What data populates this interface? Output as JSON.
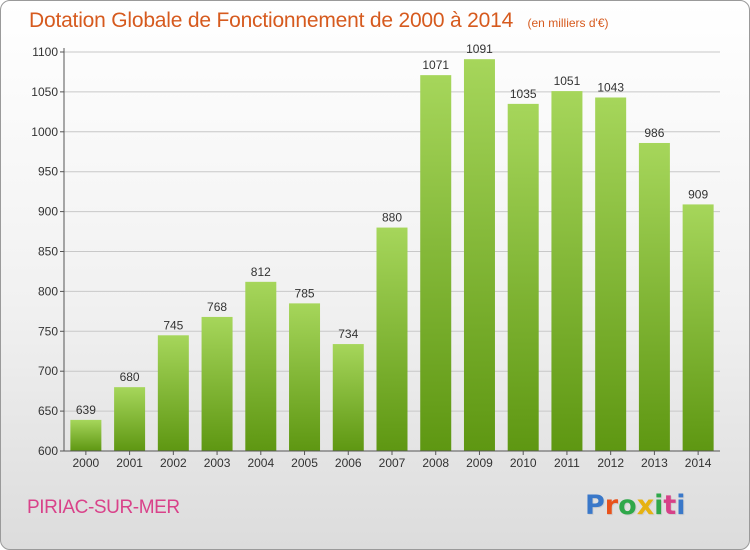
{
  "header": {
    "title": "Dotation Globale de Fonctionnement de 2000 à 2014",
    "subtitle": "(en milliers d'€)"
  },
  "footer": {
    "location": "PIRIAC-SUR-MER",
    "brand": "Proxiti",
    "brand_colors": [
      "#3a78c9",
      "#e8521b",
      "#2fa84a",
      "#e6b211",
      "#2fa84a",
      "#d64188",
      "#3a78c9"
    ]
  },
  "colors": {
    "bar_top": "#a6d65b",
    "bar_bottom": "#5e9712",
    "grid": "#c8c8c8",
    "axis": "#555555",
    "label": "#333333"
  },
  "chart_data": {
    "type": "bar",
    "title": "Dotation Globale de Fonctionnement de 2000 à 2014",
    "subtitle": "(en milliers d'€)",
    "xlabel": "",
    "ylabel": "",
    "categories": [
      "2000",
      "2001",
      "2002",
      "2003",
      "2004",
      "2005",
      "2006",
      "2007",
      "2008",
      "2009",
      "2010",
      "2011",
      "2012",
      "2013",
      "2014"
    ],
    "values": [
      639,
      680,
      745,
      768,
      812,
      785,
      734,
      880,
      1071,
      1091,
      1035,
      1051,
      1043,
      986,
      909
    ],
    "data_labels": [
      "639",
      "680",
      "745",
      "768",
      "812",
      "785",
      "734",
      "880",
      "1071",
      "1091",
      "1035",
      "1051",
      "1043",
      "986",
      "909"
    ],
    "ylim": [
      600,
      1100
    ],
    "yticks": [
      600,
      650,
      700,
      750,
      800,
      850,
      900,
      950,
      1000,
      1050,
      1100
    ],
    "ytick_labels": [
      "600",
      "650",
      "700",
      "750",
      "800",
      "850",
      "900",
      "950",
      "1000",
      "1050",
      "1100"
    ],
    "grid": true,
    "legend": "none"
  }
}
